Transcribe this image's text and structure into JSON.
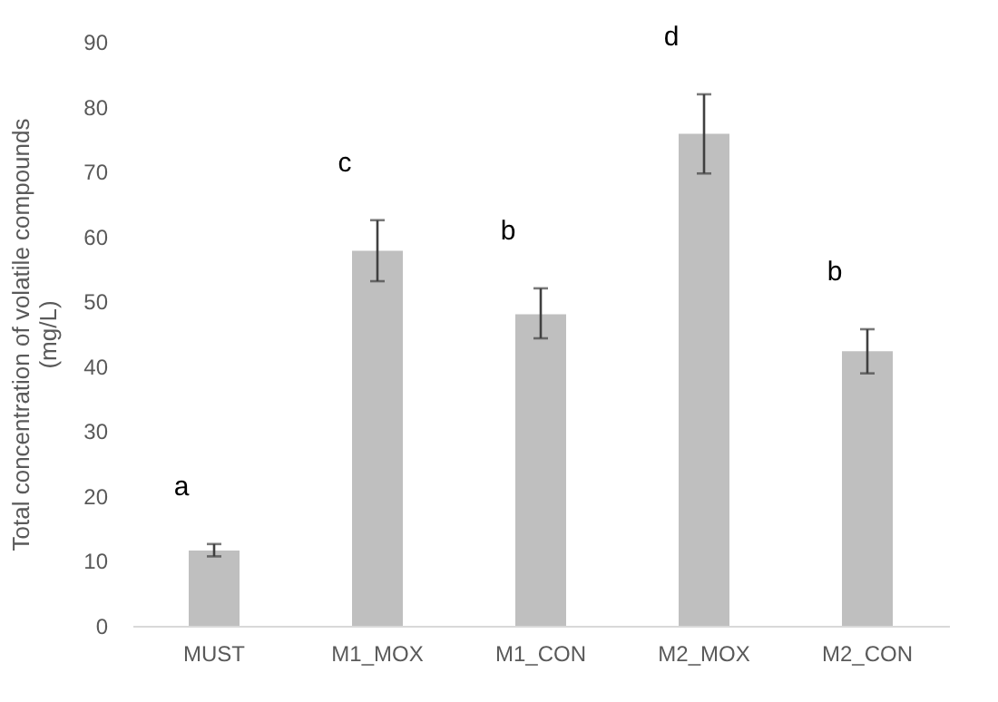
{
  "chart_data": {
    "type": "bar",
    "ylabel": "Total concentration of volatile compounds\n(mg/L)",
    "categories": [
      "MUST",
      "M1_MOX",
      "M1_CON",
      "M2_MOX",
      "M2_CON"
    ],
    "values": [
      11.6,
      57.8,
      48.0,
      75.8,
      42.3
    ],
    "errors": [
      [
        10.7,
        12.6
      ],
      [
        53.1,
        62.5
      ],
      [
        44.3,
        52.0
      ],
      [
        69.7,
        81.9
      ],
      [
        38.9,
        45.7
      ]
    ],
    "color": "#bfbfbf",
    "ylim": [
      0,
      90
    ],
    "yticks": [
      0,
      10,
      20,
      30,
      40,
      50,
      60,
      70,
      80,
      90
    ],
    "grid": false,
    "annotations": [
      "a",
      "c",
      "b",
      "d",
      "b"
    ]
  }
}
